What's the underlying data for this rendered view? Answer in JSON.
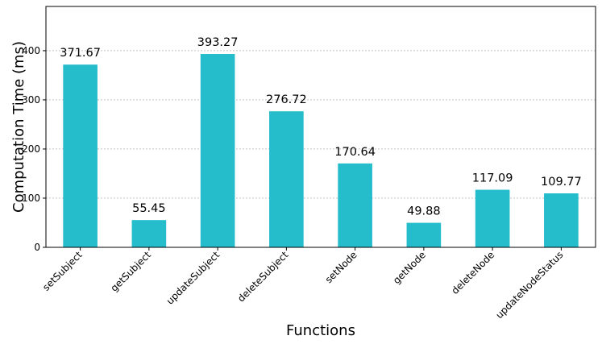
{
  "chart_data": {
    "type": "bar",
    "title": "",
    "xlabel": "Functions",
    "ylabel": "Computation Time (ms)",
    "categories": [
      "setSubject",
      "getSubject",
      "updateSubject",
      "deleteSubject",
      "setNode",
      "getNode",
      "deleteNode",
      "updateNodeStatus"
    ],
    "values": [
      371.67,
      55.45,
      393.27,
      276.72,
      170.64,
      49.88,
      117.09,
      109.77
    ],
    "data_labels": [
      "371.67",
      "55.45",
      "393.27",
      "276.72",
      "170.64",
      "49.88",
      "117.09",
      "109.77"
    ],
    "ylim": [
      0,
      490
    ],
    "yticks": [
      0,
      100,
      200,
      300,
      400
    ],
    "ytick_labels": [
      "0",
      "100",
      "200",
      "300",
      "400"
    ],
    "grid": "horizontal-dashed",
    "legend": "none",
    "bar_color": "#25bccc"
  }
}
